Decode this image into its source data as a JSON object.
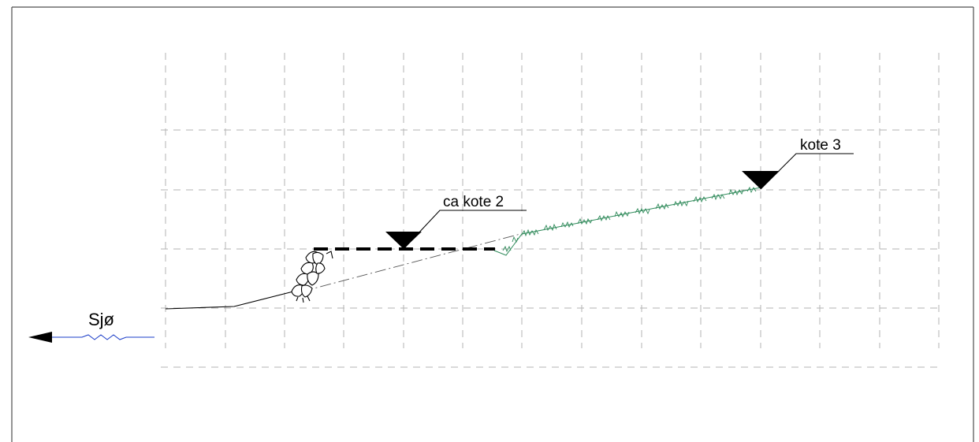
{
  "labels": {
    "sea": "Sjø",
    "level_low": "ca kote 2",
    "level_high": "kote 3"
  },
  "colors": {
    "frame": "#4d4d4d",
    "grid": "#b3b3b3",
    "terrain": "#000000",
    "sea_line": "#1a3cc8",
    "grass": "#2f8a5a",
    "marker": "#000000"
  }
}
